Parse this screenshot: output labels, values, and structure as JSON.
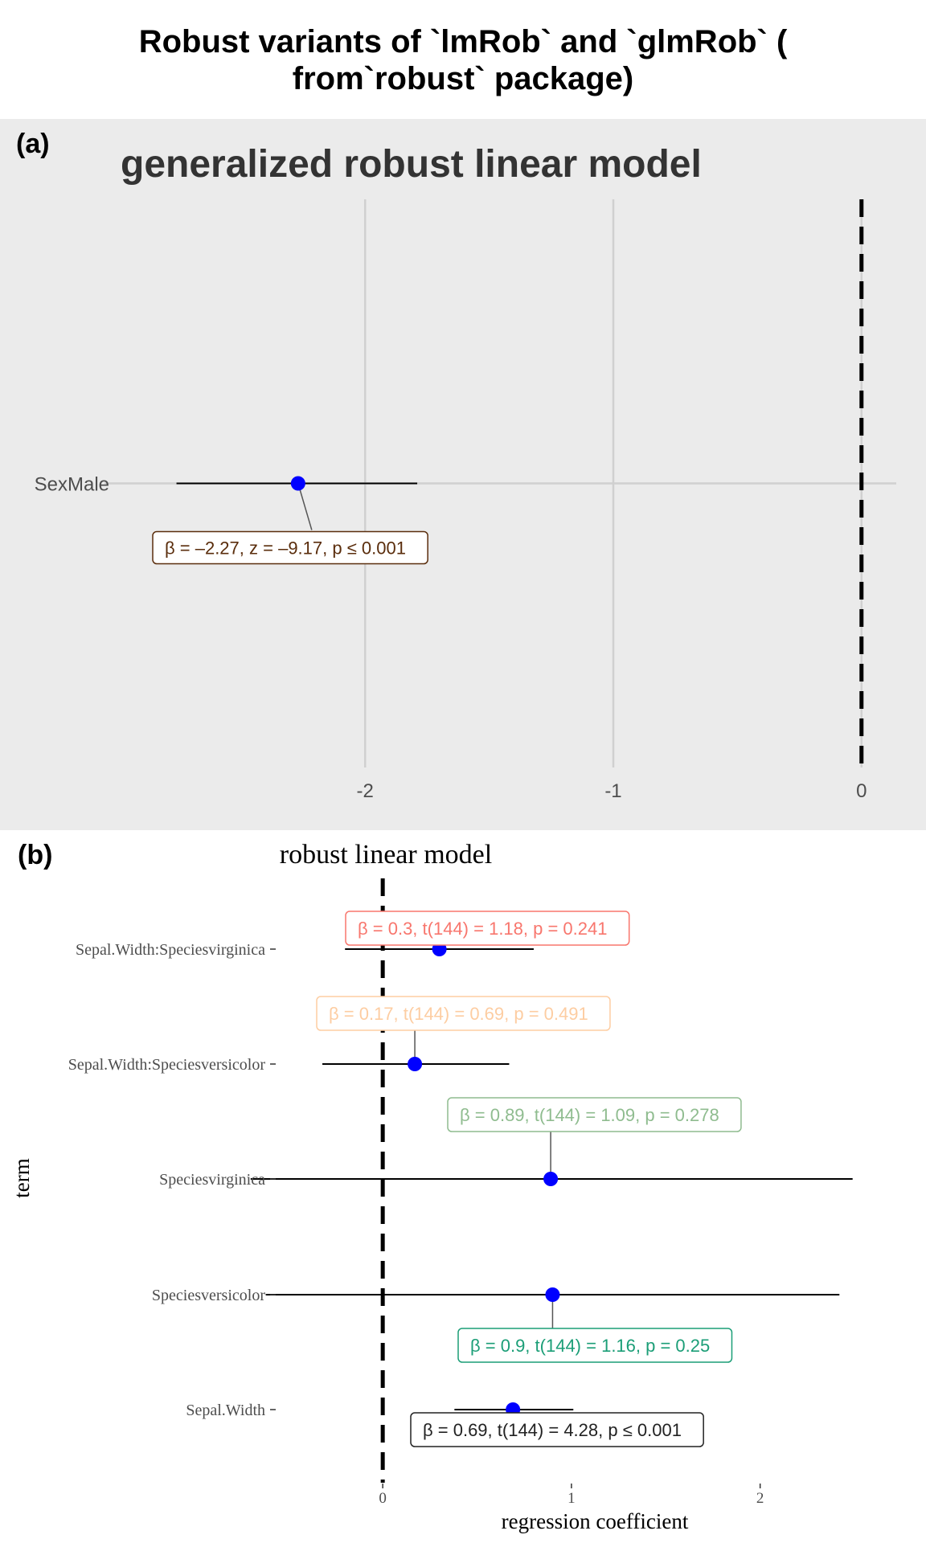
{
  "page": {
    "title": "Robust variants of `lmRob` and `glmRob` (\nfrom`robust` package)",
    "title_lines": [
      "Robust variants of `lmRob` and `glmRob` (",
      "from`robust` package)"
    ]
  },
  "chart_data": [
    {
      "type": "scatter",
      "tag": "(a)",
      "title": "generalized robust linear model",
      "xlabel": "",
      "ylabel": "",
      "xlim": [
        -3.05,
        0.14
      ],
      "x_ticks": [
        -2,
        -1,
        0
      ],
      "x_tick_labels": [
        "-2",
        "-1",
        "0"
      ],
      "panel_background": "#ebebeb",
      "grid": true,
      "reference_line_x": 0,
      "terms": [
        "SexMale"
      ],
      "estimates": [
        {
          "term": "SexMale",
          "estimate": -2.27,
          "conf_low": -2.76,
          "conf_high": -1.79,
          "label": "β = –2.27,  z = –9.17,  p ≤ 0.001",
          "label_color": "#5a2d0c"
        }
      ],
      "point_color": "#0000ff"
    },
    {
      "type": "scatter",
      "tag": "(b)",
      "title": "robust linear model",
      "xlabel": "regression coefficient",
      "ylabel": "term",
      "xlim": [
        -0.58,
        2.7
      ],
      "x_ticks": [
        0,
        1,
        2
      ],
      "x_tick_labels": [
        "0",
        "1",
        "2"
      ],
      "grid": false,
      "reference_line_x": 0,
      "terms": [
        "Sepal.Width:Speciesvirginica",
        "Sepal.Width:Speciesversicolor",
        "Speciesvirginica",
        "Speciesversicolor",
        "Sepal.Width"
      ],
      "estimates": [
        {
          "term": "Sepal.Width:Speciesvirginica",
          "estimate": 0.3,
          "conf_low": -0.2,
          "conf_high": 0.8,
          "label": "β = 0.3,  t(144) = 1.18,  p = 0.241",
          "label_color": "#f8766d"
        },
        {
          "term": "Sepal.Width:Speciesversicolor",
          "estimate": 0.17,
          "conf_low": -0.32,
          "conf_high": 0.67,
          "label": "β = 0.17,  t(144) = 0.69,  p = 0.491",
          "label_color": "#fdcda2"
        },
        {
          "term": "Speciesvirginica",
          "estimate": 0.89,
          "conf_low": -0.7,
          "conf_high": 2.49,
          "label": "β = 0.89,  t(144) = 1.09,  p = 0.278",
          "label_color": "#8fbc8f"
        },
        {
          "term": "Speciesversicolor",
          "estimate": 0.9,
          "conf_low": -0.62,
          "conf_high": 2.42,
          "label": "β = 0.9,  t(144) = 1.16,  p = 0.25",
          "label_color": "#1b9e77"
        },
        {
          "term": "Sepal.Width",
          "estimate": 0.69,
          "conf_low": 0.38,
          "conf_high": 1.01,
          "label": "β = 0.69,  t(144) = 4.28,  p ≤ 0.001",
          "label_color": "#222222"
        }
      ],
      "point_color": "#0000ff"
    }
  ]
}
